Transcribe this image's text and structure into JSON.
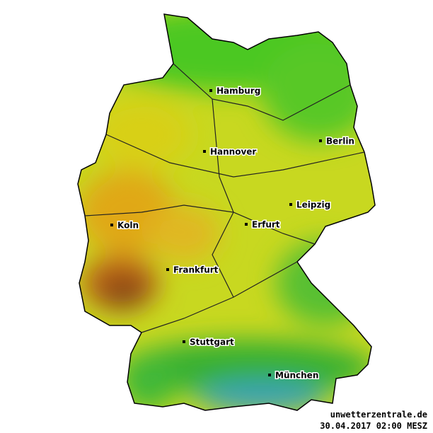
{
  "map": {
    "cities": [
      {
        "label": "Hamburg"
      },
      {
        "label": "Berlin"
      },
      {
        "label": "Hannover"
      },
      {
        "label": "Leipzig"
      },
      {
        "label": "Erfurt"
      },
      {
        "label": "Koln"
      },
      {
        "label": "Frankfurt"
      },
      {
        "label": "Stuttgart"
      },
      {
        "label": "München"
      }
    ],
    "source": "unwetterzentrale.de",
    "timestamp": "30.04.2017 02:00 MESZ"
  }
}
